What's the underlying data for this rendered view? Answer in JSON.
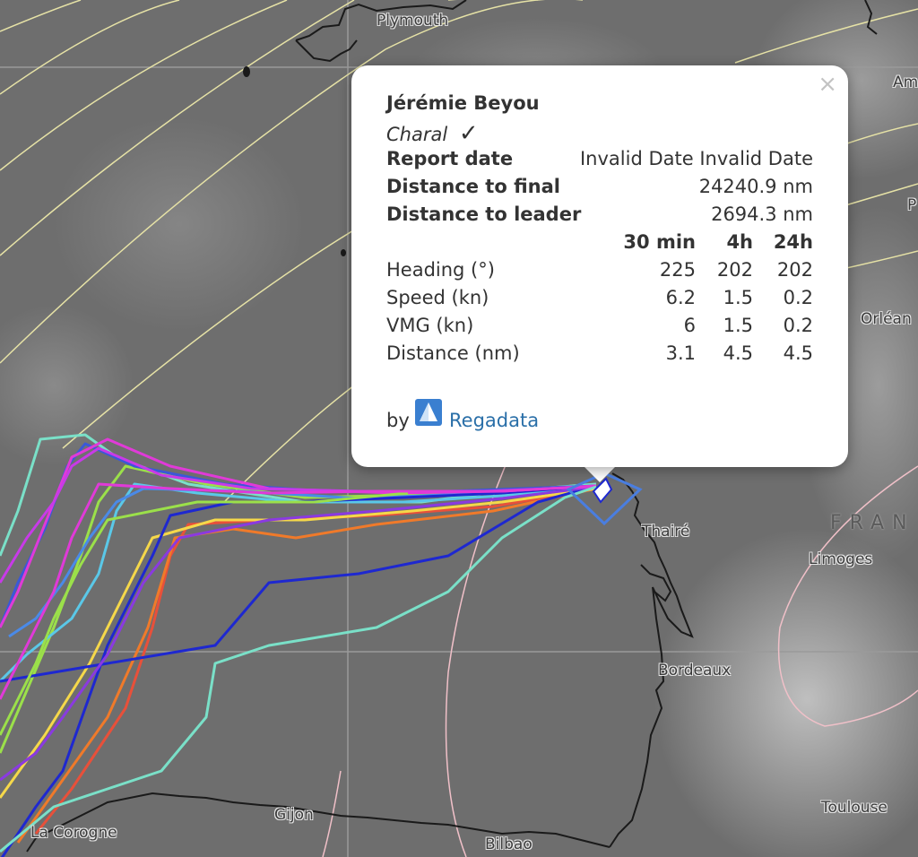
{
  "map": {
    "cities": [
      {
        "id": "plymouth",
        "name": "Plymouth"
      },
      {
        "id": "amiens",
        "name": "Am"
      },
      {
        "id": "paris",
        "name": "P"
      },
      {
        "id": "orleans",
        "name": "Orléan"
      },
      {
        "id": "thaire",
        "name": "Thairé"
      },
      {
        "id": "limoges",
        "name": "Limoges"
      },
      {
        "id": "bordeaux",
        "name": "Bordeaux"
      },
      {
        "id": "gijon",
        "name": "Gijon"
      },
      {
        "id": "bilbao",
        "name": "Bilbao"
      },
      {
        "id": "la-corogne",
        "name": "La Corogne"
      },
      {
        "id": "toulouse",
        "name": "Toulouse"
      }
    ],
    "country": "FRAN",
    "track_colors": [
      "#e8503a",
      "#f07a2a",
      "#f5d84a",
      "#9be04a",
      "#5ac8e8",
      "#7ae0c8",
      "#3a58d8",
      "#1e28d0",
      "#8a3ae0",
      "#e03ad8",
      "#c83ae8",
      "#4a8ae8"
    ]
  },
  "popup": {
    "skipper": "Jérémie Beyou",
    "boat": "Charal",
    "boat_mark": "✓",
    "rows": [
      {
        "label": "Report date",
        "value": "Invalid Date Invalid Date"
      },
      {
        "label": "Distance to final",
        "value": "24240.9 nm"
      },
      {
        "label": "Distance to leader",
        "value": "2694.3 nm"
      }
    ],
    "table": {
      "headers": [
        "30 min",
        "4h",
        "24h"
      ],
      "rows": [
        {
          "label": "Heading (°)",
          "values": [
            "225",
            "202",
            "202"
          ]
        },
        {
          "label": "Speed (kn)",
          "values": [
            "6.2",
            "1.5",
            "0.2"
          ]
        },
        {
          "label": "VMG (kn)",
          "values": [
            "6",
            "1.5",
            "0.2"
          ]
        },
        {
          "label": "Distance (nm)",
          "values": [
            "3.1",
            "4.5",
            "4.5"
          ]
        }
      ]
    },
    "by_label": "by",
    "brand": "Regadata",
    "close": "×"
  }
}
